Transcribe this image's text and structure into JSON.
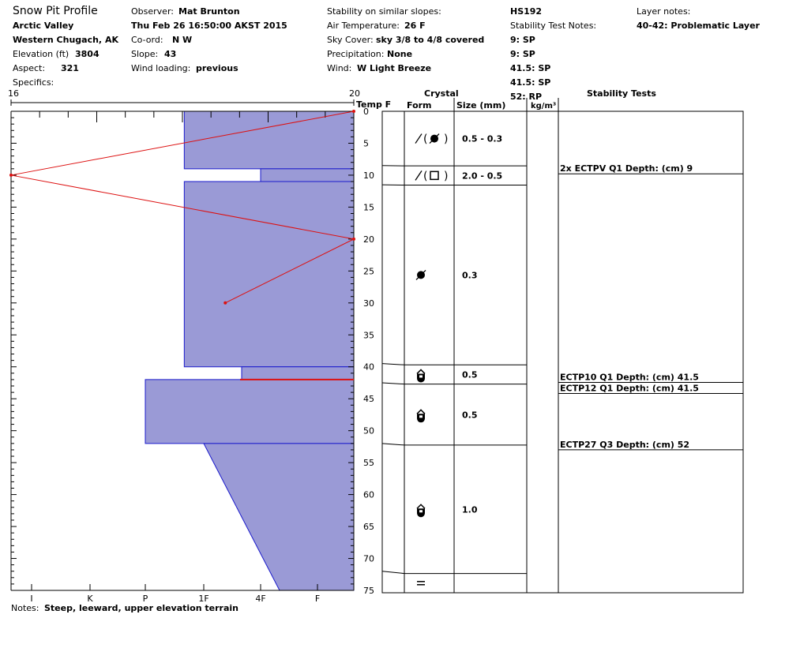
{
  "header": {
    "title": "Snow Pit Profile",
    "location": "Arctic Valley",
    "region": "Western Chugach, AK",
    "elevation_label": "Elevation (ft)",
    "elevation": "3804",
    "aspect_label": "Aspect:",
    "aspect": "321",
    "specifics_label": "Specifics:",
    "observer_label": "Observer:",
    "observer": "Mat Brunton",
    "datetime": "Thu Feb 26 16:50:00 AKST 2015",
    "coord_label": "Co-ord:",
    "coord": "N  W",
    "slope_label": "Slope:",
    "slope": "43",
    "wind_loading_label": "Wind loading:",
    "wind_loading": "previous",
    "stability_similar_label": "Stability on similar slopes:",
    "air_temp_label": "Air Temperature:",
    "air_temp": "26 F",
    "sky_label": "Sky Cover:",
    "sky": "sky 3/8 to 4/8 covered",
    "precip_label": "Precipitation:",
    "precip": "None",
    "wind_label": "Wind:",
    "wind": "W Light Breeze",
    "hs": "HS192",
    "stability_notes_label": "Stability Test Notes:",
    "stability_notes": [
      "9: SP",
      "9: SP",
      "41.5: SP",
      "41.5: SP",
      "52: RP"
    ],
    "layer_notes_label": "Layer notes:",
    "layer_notes": "40-42: Problematic Layer"
  },
  "notes_label": "Notes:",
  "notes": "Steep, leeward, upper elevation terrain",
  "colors": {
    "hardness_fill": "#9a9ad6",
    "hardness_stroke": "#1a1acc",
    "temp": "#dd1111"
  },
  "chart_data": {
    "type": "area",
    "temp_axis": {
      "min": 16,
      "max": 20,
      "label": "Temp F",
      "min_label": "16",
      "max_label": "20"
    },
    "depth_axis": {
      "min": 0,
      "max": 75,
      "ticks": [
        "0",
        "5",
        "10",
        "15",
        "20",
        "25",
        "30",
        "35",
        "40",
        "45",
        "50",
        "55",
        "60",
        "65",
        "70",
        "75"
      ]
    },
    "hardness_axis": {
      "labels": [
        "I",
        "K",
        "P",
        "1F",
        "4F",
        "F"
      ],
      "note": "hardness increases leftward from the right edge (F) to Knife (K) and Ice (I)"
    },
    "hardness_profile": [
      {
        "top": 0,
        "bottom": 9,
        "hardness": "1F+"
      },
      {
        "top": 9,
        "bottom": 11,
        "hardness": "4F"
      },
      {
        "top": 11,
        "bottom": 40,
        "hardness": "1F+"
      },
      {
        "top": 40,
        "bottom": 42,
        "hardness": "4F+"
      },
      {
        "top": 42,
        "bottom": 52,
        "hardness": "P"
      },
      {
        "top": 52,
        "bottom": 75,
        "hardness_top": "1F",
        "hardness_bottom": "4F-"
      }
    ],
    "temperature_profile": [
      {
        "depth": 0,
        "temp": 20
      },
      {
        "depth": 10,
        "temp": 16
      },
      {
        "depth": 20,
        "temp": 20
      },
      {
        "depth": 30,
        "temp": 18.5
      }
    ],
    "problem_layer_depth": 42,
    "columns": {
      "crystal": "Crystal",
      "form": "Form",
      "size": "Size (mm)",
      "density": "kg/m³",
      "stability": "Stability Tests"
    },
    "layers": [
      {
        "top": 0,
        "bottom": 8.5,
        "form": "precip-particle, rounded",
        "size": "0.5 - 0.3"
      },
      {
        "top": 8.5,
        "bottom": 11.5,
        "form": "precip-particle, faceted",
        "size": "2.0 - 0.5"
      },
      {
        "top": 11.5,
        "bottom": 39.5,
        "form": "rounded",
        "size": "0.3"
      },
      {
        "top": 39.5,
        "bottom": 42.5,
        "form": "depth hoar",
        "size": "0.5"
      },
      {
        "top": 42.5,
        "bottom": 52,
        "form": "depth hoar",
        "size": "0.5"
      },
      {
        "top": 52,
        "bottom": 72,
        "form": "depth hoar",
        "size": "1.0"
      },
      {
        "top": 72,
        "bottom": 75,
        "form": "crust",
        "size": ""
      }
    ],
    "stability_tests": [
      {
        "depth": 9,
        "text": "2x ECTPV Q1 Depth: (cm) 9"
      },
      {
        "depth": 41.5,
        "text": "ECTP10 Q1 Depth: (cm) 41.5"
      },
      {
        "depth": 41.5,
        "text": "ECTP12 Q1 Depth: (cm) 41.5"
      },
      {
        "depth": 52,
        "text": "ECTP27 Q3 Depth: (cm) 52"
      }
    ]
  }
}
